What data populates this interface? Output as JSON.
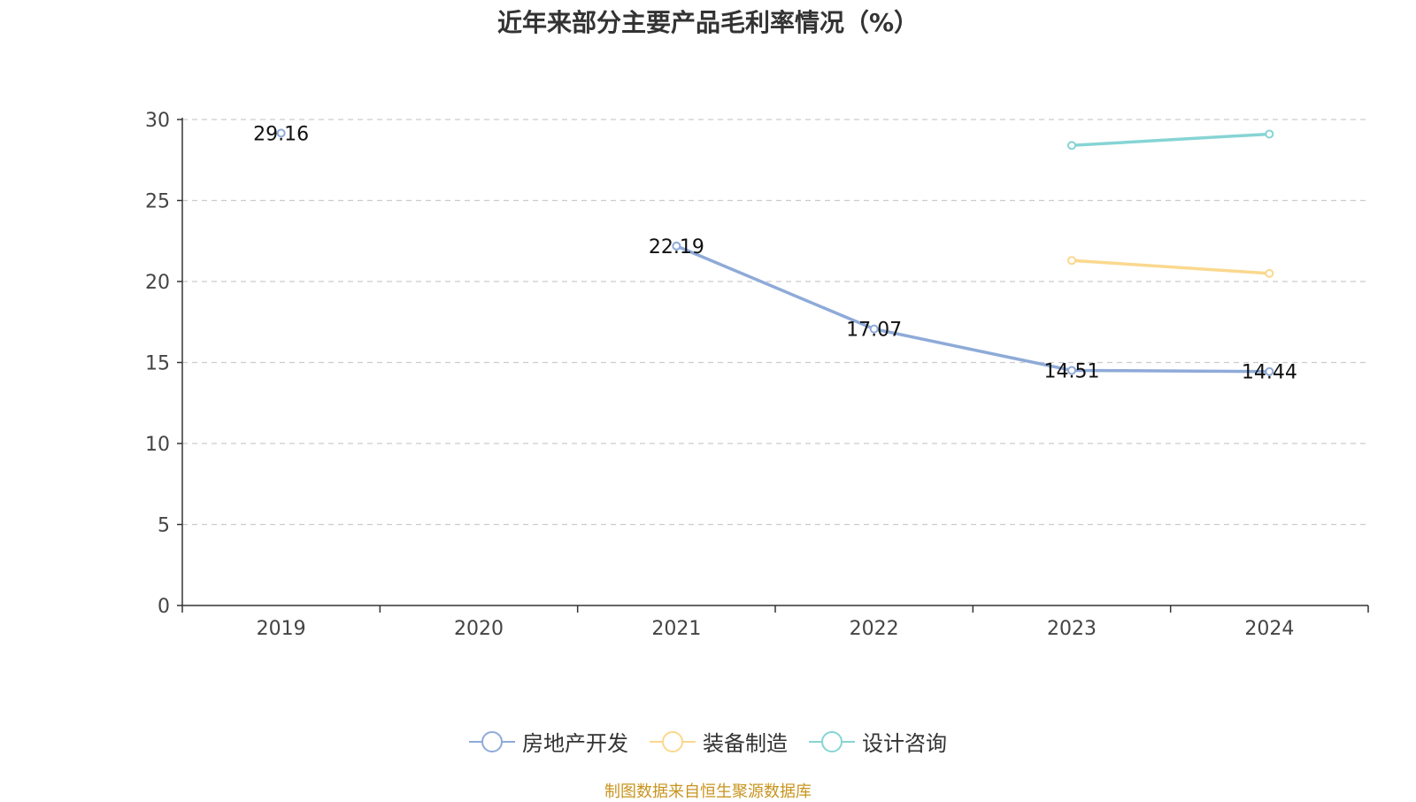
{
  "chart_data": {
    "type": "line",
    "title": "近年来部分主要产品毛利率情况（%）",
    "categories": [
      "2019",
      "2020",
      "2021",
      "2022",
      "2023",
      "2024"
    ],
    "ylim": [
      0,
      30
    ],
    "yticks": [
      0,
      5,
      10,
      15,
      20,
      25,
      30
    ],
    "grid": true,
    "legend_position": "bottom",
    "series": [
      {
        "name": "房地产开发",
        "color": "#8eaad8",
        "values": [
          29.16,
          null,
          22.19,
          17.07,
          14.51,
          14.44
        ],
        "labels": [
          "29.16",
          "",
          "22.19",
          "17.07",
          "14.51",
          "14.44"
        ]
      },
      {
        "name": "装备制造",
        "color": "#fbd88e",
        "values": [
          null,
          null,
          null,
          null,
          21.3,
          20.5
        ],
        "labels": [
          "",
          "",
          "",
          "",
          "",
          ""
        ]
      },
      {
        "name": "设计咨询",
        "color": "#86d4d4",
        "values": [
          null,
          null,
          null,
          null,
          28.4,
          29.1
        ],
        "labels": [
          "",
          "",
          "",
          "",
          "",
          ""
        ]
      }
    ]
  },
  "source_note": "制图数据来自恒生聚源数据库"
}
